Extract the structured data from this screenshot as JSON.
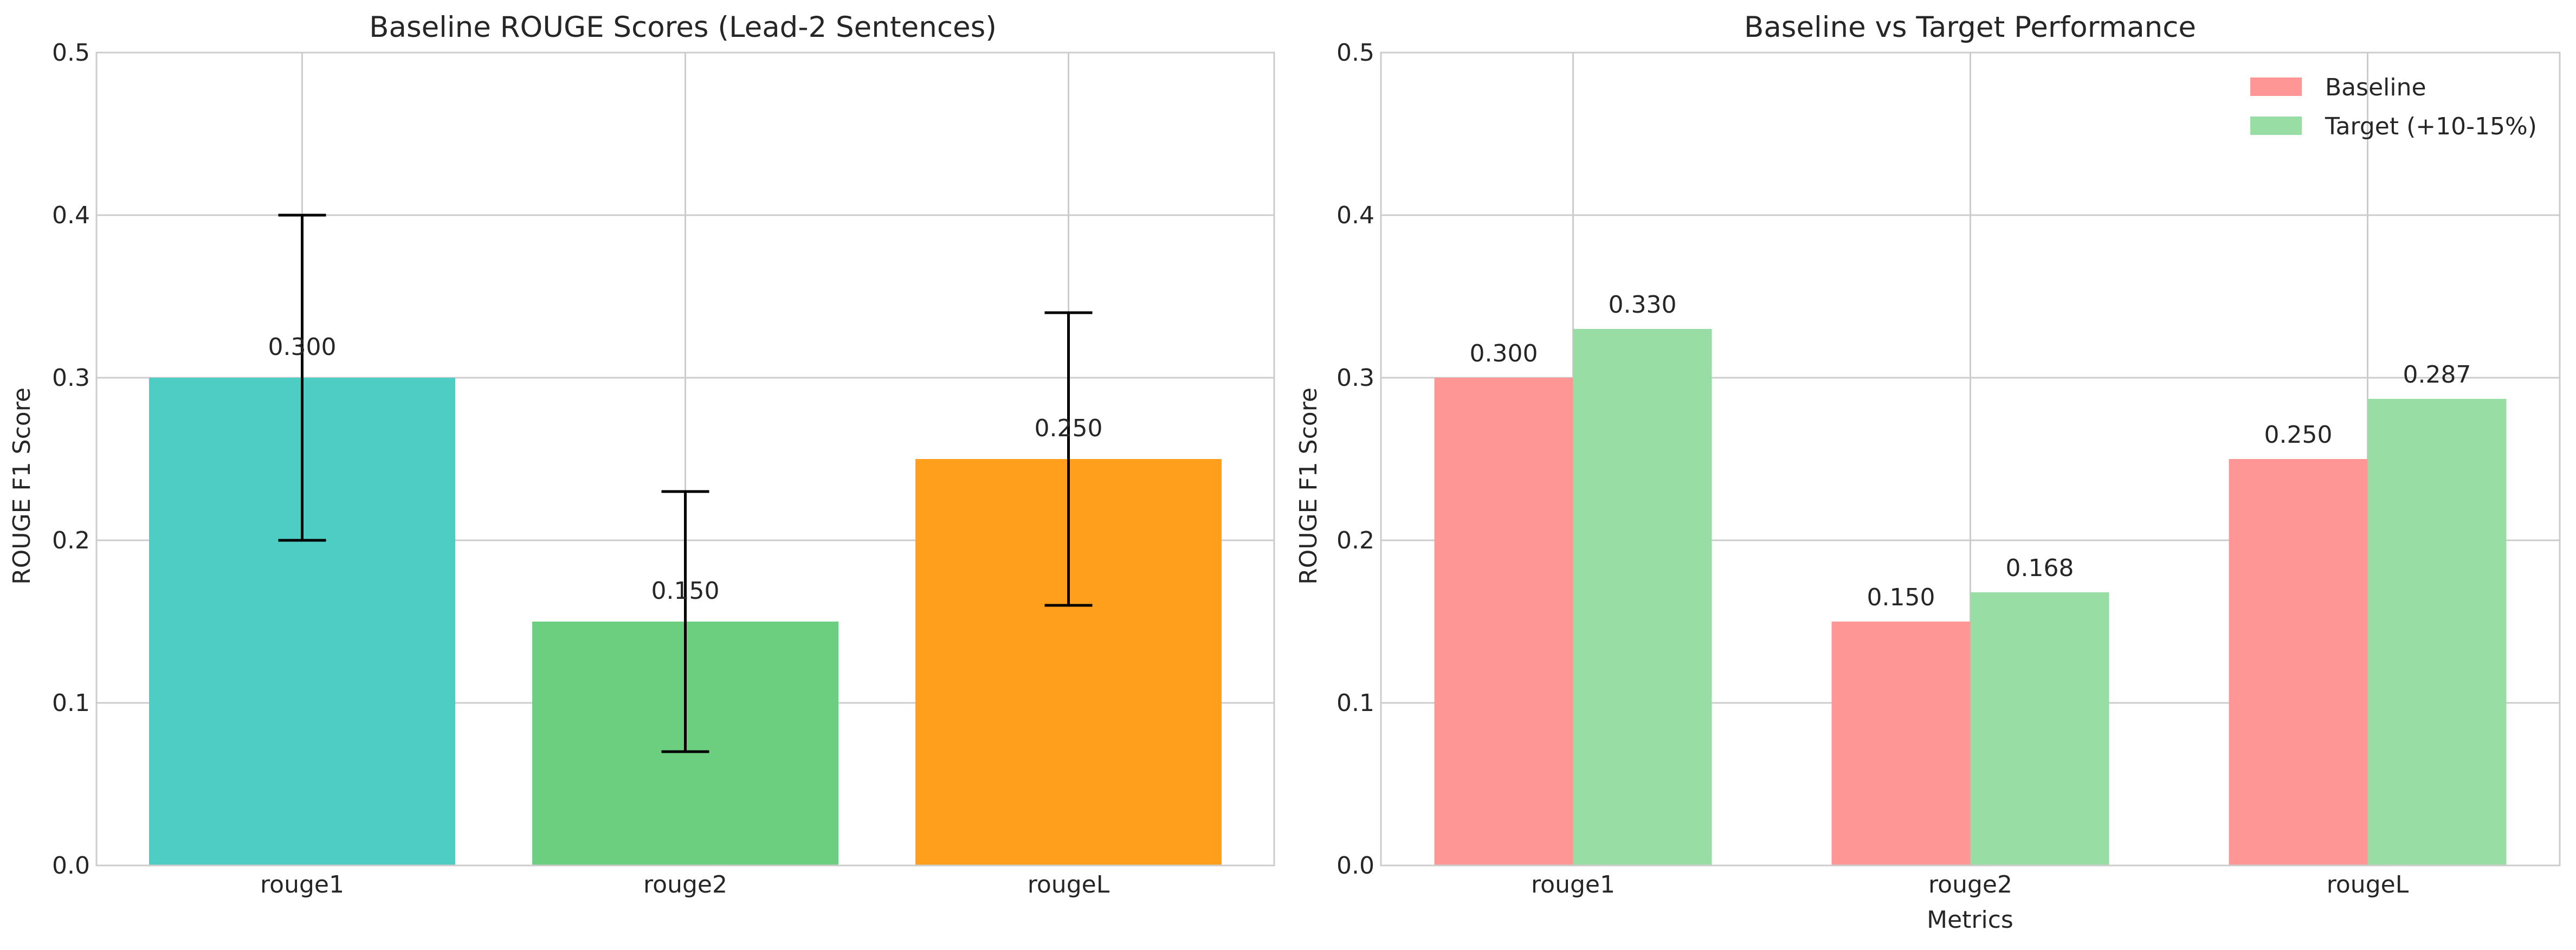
{
  "chart_data": [
    {
      "type": "bar",
      "title": "Baseline ROUGE Scores (Lead-2 Sentences)",
      "xlabel": "",
      "ylabel": "ROUGE F1 Score",
      "categories": [
        "rouge1",
        "rouge2",
        "rougeL"
      ],
      "values": [
        0.3,
        0.15,
        0.25
      ],
      "value_labels": [
        "0.300",
        "0.150",
        "0.250"
      ],
      "error_bars": [
        {
          "low": 0.2,
          "high": 0.4
        },
        {
          "low": 0.07,
          "high": 0.23
        },
        {
          "low": 0.16,
          "high": 0.34
        }
      ],
      "colors": [
        "#4ECDC4",
        "#6BCF7F",
        "#FF9F1C"
      ],
      "ylim": [
        0,
        0.5
      ],
      "yticks": [
        0.0,
        0.1,
        0.2,
        0.3,
        0.4,
        0.5
      ],
      "ytick_labels": [
        "0.0",
        "0.1",
        "0.2",
        "0.3",
        "0.4",
        "0.5"
      ],
      "grid": true,
      "legend": null
    },
    {
      "type": "bar",
      "title": "Baseline vs Target Performance",
      "xlabel": "Metrics",
      "ylabel": "ROUGE F1 Score",
      "categories": [
        "rouge1",
        "rouge2",
        "rougeL"
      ],
      "series": [
        {
          "name": "Baseline",
          "values": [
            0.3,
            0.15,
            0.25
          ],
          "value_labels": [
            "0.300",
            "0.150",
            "0.250"
          ],
          "color": "#FF9696"
        },
        {
          "name": "Target (+10-15%)",
          "values": [
            0.33,
            0.168,
            0.287
          ],
          "value_labels": [
            "0.330",
            "0.168",
            "0.287"
          ],
          "color": "#98DDA4"
        }
      ],
      "ylim": [
        0,
        0.5
      ],
      "yticks": [
        0.0,
        0.1,
        0.2,
        0.3,
        0.4,
        0.5
      ],
      "ytick_labels": [
        "0.0",
        "0.1",
        "0.2",
        "0.3",
        "0.4",
        "0.5"
      ],
      "grid": true,
      "legend": "top-right"
    }
  ]
}
